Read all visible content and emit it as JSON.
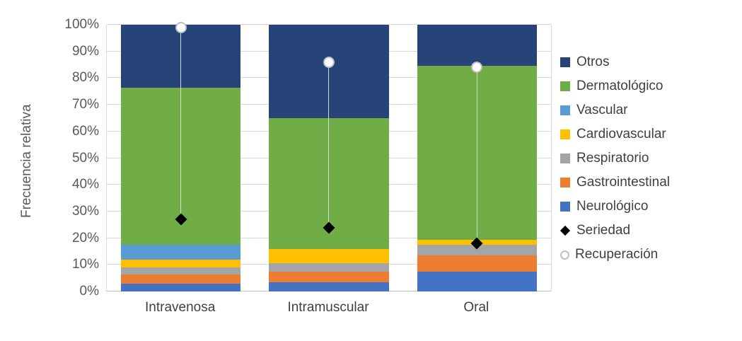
{
  "chart_data": {
    "type": "bar",
    "subtype": "stacked-percent-with-markers",
    "title": "",
    "ylabel": "Frecuencia relativa",
    "xlabel": "",
    "ylim": [
      0,
      100
    ],
    "grid": true,
    "legend_position": "right",
    "yticks": [
      0,
      10,
      20,
      30,
      40,
      50,
      60,
      70,
      80,
      90,
      100
    ],
    "ytick_labels": [
      "0%",
      "10%",
      "20%",
      "30%",
      "40%",
      "50%",
      "60%",
      "70%",
      "80%",
      "90%",
      "100%"
    ],
    "categories": [
      "Intravenosa",
      "Intramuscular",
      "Oral"
    ],
    "series": [
      {
        "name": "Neurológico",
        "color": "#4472C4",
        "values": [
          3.0,
          3.5,
          7.5
        ]
      },
      {
        "name": "Gastrointestinal",
        "color": "#ED7D31",
        "values": [
          3.5,
          4.0,
          6.0
        ]
      },
      {
        "name": "Respiratorio",
        "color": "#A5A5A5",
        "values": [
          2.5,
          3.0,
          4.0
        ]
      },
      {
        "name": "Cardiovascular",
        "color": "#FFC000",
        "values": [
          3.0,
          5.5,
          2.0
        ]
      },
      {
        "name": "Vascular",
        "color": "#5B9BD5",
        "values": [
          5.5,
          0.0,
          0.0
        ]
      },
      {
        "name": "Dermatológico",
        "color": "#70AD47",
        "values": [
          59.0,
          49.0,
          65.0
        ]
      },
      {
        "name": "Otros",
        "color": "#264478",
        "values": [
          23.5,
          35.0,
          15.5
        ]
      }
    ],
    "markers": [
      {
        "name": "Seriedad",
        "shape": "diamond",
        "color": "#000000",
        "values": [
          27,
          24,
          18
        ]
      },
      {
        "name": "Recuperación",
        "shape": "circle",
        "color": "#FFFFFF",
        "border": "#BFBFBF",
        "values": [
          99,
          86,
          84
        ]
      }
    ],
    "legend": [
      {
        "label": "Otros",
        "swatch": "square",
        "color": "#264478"
      },
      {
        "label": "Dermatológico",
        "swatch": "square",
        "color": "#70AD47"
      },
      {
        "label": "Vascular",
        "swatch": "square",
        "color": "#5B9BD5"
      },
      {
        "label": "Cardiovascular",
        "swatch": "square",
        "color": "#FFC000"
      },
      {
        "label": "Respiratorio",
        "swatch": "square",
        "color": "#A5A5A5"
      },
      {
        "label": "Gastrointestinal",
        "swatch": "square",
        "color": "#ED7D31"
      },
      {
        "label": "Neurológico",
        "swatch": "square",
        "color": "#4472C4"
      },
      {
        "label": "Seriedad",
        "swatch": "diamond",
        "color": "#000000"
      },
      {
        "label": "Recuperación",
        "swatch": "circle",
        "color": "#FFFFFF"
      }
    ]
  }
}
